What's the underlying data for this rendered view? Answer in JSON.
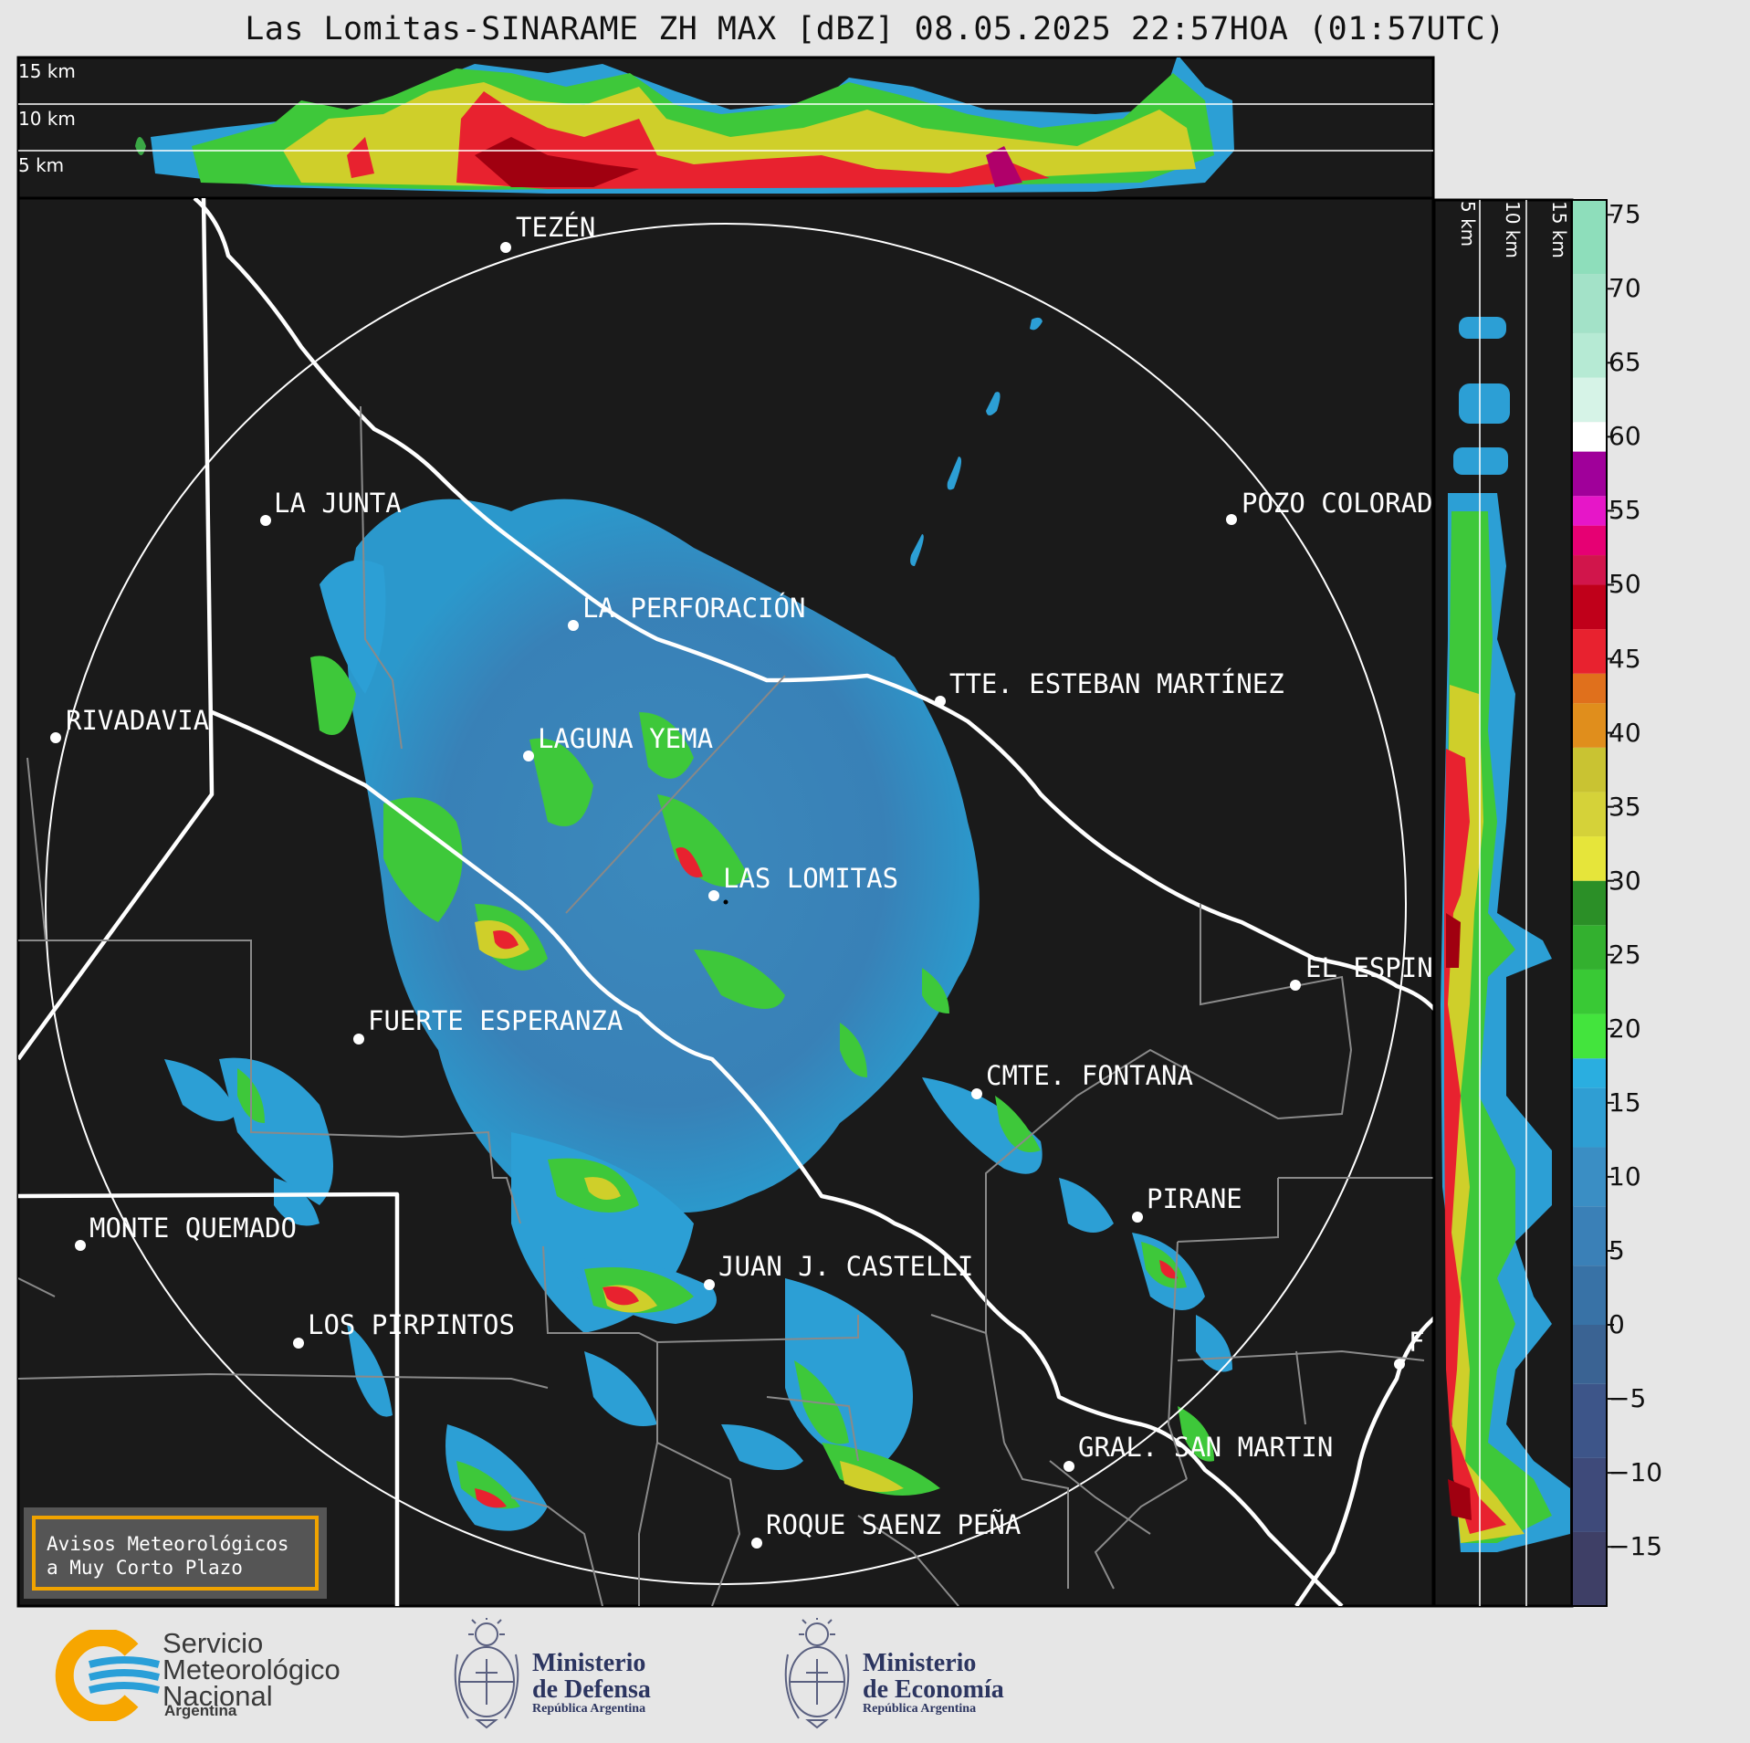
{
  "title": "Las Lomitas-SINARAME ZH MAX [dBZ] 08.05.2025 22:57HOA (01:57UTC)",
  "cross_section_top": {
    "height_labels": [
      "15 km",
      "10 km",
      "5 km"
    ]
  },
  "cross_section_right": {
    "height_labels": [
      "5 km",
      "10 km",
      "15 km"
    ]
  },
  "colorbar": {
    "ticks": [
      "75",
      "70",
      "65",
      "60",
      "55",
      "50",
      "45",
      "40",
      "35",
      "30",
      "25",
      "20",
      "15",
      "10",
      "5",
      "0",
      "−5",
      "−10",
      "−15"
    ],
    "range": [
      -19,
      76
    ],
    "unit": "dBZ"
  },
  "cities": [
    {
      "name": "TEZÉN"
    },
    {
      "name": "LA JUNTA"
    },
    {
      "name": "POZO COLORAD"
    },
    {
      "name": "LA PERFORACIÓN"
    },
    {
      "name": "TTE. ESTEBAN MARTÍNEZ"
    },
    {
      "name": "RIVADAVIA"
    },
    {
      "name": "LAGUNA YEMA"
    },
    {
      "name": "LAS LOMITAS"
    },
    {
      "name": "EL ESPIN"
    },
    {
      "name": "FUERTE ESPERANZA"
    },
    {
      "name": "CMTE. FONTANA"
    },
    {
      "name": "PIRANE"
    },
    {
      "name": "MONTE QUEMADO"
    },
    {
      "name": "JUAN J. CASTELLI"
    },
    {
      "name": "LOS PIRPINTOS"
    },
    {
      "name": "F"
    },
    {
      "name": "GRAL. SAN MARTIN"
    },
    {
      "name": "ROQUE SAENZ PEÑA"
    }
  ],
  "notice": {
    "line1": "Avisos Meteorológicos",
    "line2": "a Muy Corto Plazo"
  },
  "logos": {
    "smn": {
      "line1": "Servicio",
      "line2": "Meteorológico",
      "line3": "Nacional",
      "sub": "Argentina"
    },
    "defensa": {
      "line1": "Ministerio",
      "line2": "de Defensa",
      "sub": "República Argentina"
    },
    "economia": {
      "line1": "Ministerio",
      "line2": "de Economía",
      "sub": "República Argentina"
    }
  },
  "colors": {
    "background": "#1a1a1a",
    "page": "#e6e6e6",
    "notice_border": "#f0a300",
    "smn_orange": "#f7a600",
    "smn_blue": "#2a9fd8",
    "ministry_navy": "#2c3560"
  }
}
